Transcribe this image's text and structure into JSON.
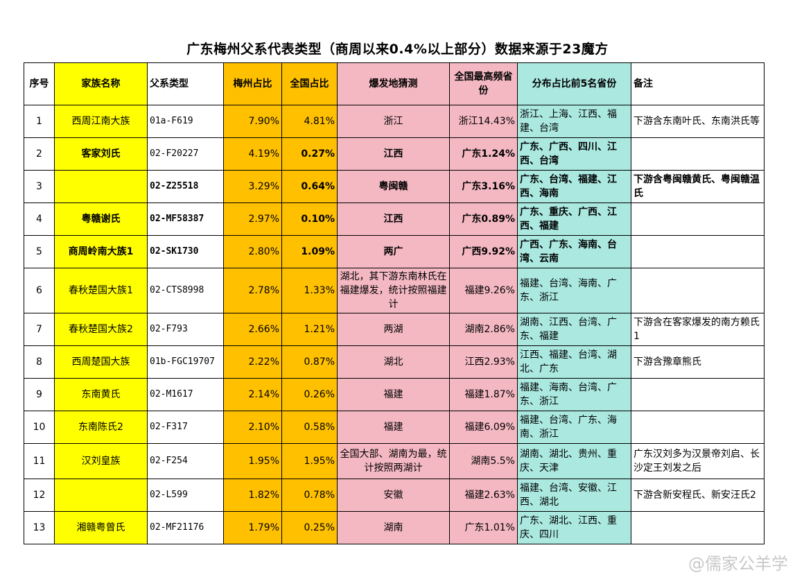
{
  "title": "广东梅州父系代表类型（商周以来0.4%以上部分）数据来源于23魔方",
  "headers": {
    "idx": "序号",
    "name": "家族名称",
    "type": "父系类型",
    "meizhou": "梅州占比",
    "national": "全国占比",
    "origin": "爆发地猜测",
    "top_province": "全国最高频省份",
    "top5": "分布占比前5名省份",
    "note": "备注"
  },
  "rows": [
    {
      "idx": "1",
      "name": "西周江南大族",
      "type": "01a-F619",
      "meizhou": "7.90%",
      "national": "4.81%",
      "origin": "浙江",
      "top_province": "浙江14.43%",
      "top5": "浙江、上海、江西、福建、台湾",
      "note": "下游含东南叶氏、东南洪氏等"
    },
    {
      "idx": "2",
      "name": "客家刘氏",
      "type": "02-F20227",
      "meizhou": "4.19%",
      "national": "0.27%",
      "origin": "江西",
      "top_province": "广东1.24%",
      "top5": "广东、广西、四川、江西、台湾",
      "note": ""
    },
    {
      "idx": "3",
      "name": "",
      "type": "02-Z25518",
      "meizhou": "3.29%",
      "national": "0.64%",
      "origin": "粤闽赣",
      "top_province": "广东3.16%",
      "top5": "广东、台湾、福建、江西、海南",
      "note": "下游含粤闽赣黄氏、粤闽赣温氏"
    },
    {
      "idx": "4",
      "name": "粤赣谢氏",
      "type": "02-MF58387",
      "meizhou": "2.97%",
      "national": "0.10%",
      "origin": "江西",
      "top_province": "广东0.89%",
      "top5": "广东、重庆、广西、江西、福建",
      "note": ""
    },
    {
      "idx": "5",
      "name": "商周岭南大族1",
      "type": "02-SK1730",
      "meizhou": "2.80%",
      "national": "1.09%",
      "origin": "两广",
      "top_province": "广西9.92%",
      "top5": "广西、广东、海南、台湾、云南",
      "note": ""
    },
    {
      "idx": "6",
      "name": "春秋楚国大族1",
      "type": "02-CTS8998",
      "meizhou": "2.78%",
      "national": "1.33%",
      "origin": "湖北，其下游东南林氏在福建爆发，统计按照福建计",
      "top_province": "福建9.26%",
      "top5": "福建、台湾、海南、广东、浙江",
      "note": ""
    },
    {
      "idx": "7",
      "name": "春秋楚国大族2",
      "type": "02-F793",
      "meizhou": "2.66%",
      "national": "1.21%",
      "origin": "两湖",
      "top_province": "湖南2.86%",
      "top5": "湖南、江西、台湾、广东、福建",
      "note": "下游含在客家爆发的南方赖氏1"
    },
    {
      "idx": "8",
      "name": "西周楚国大族",
      "type": "01b-FGC19707",
      "meizhou": "2.22%",
      "national": "0.87%",
      "origin": "湖北",
      "top_province": "江西2.93%",
      "top5": "江西、福建、台湾、湖北、广东",
      "note": "下游含豫章熊氏"
    },
    {
      "idx": "9",
      "name": "东南黄氏",
      "type": "02-M1617",
      "meizhou": "2.14%",
      "national": "0.26%",
      "origin": "福建",
      "top_province": "福建1.87%",
      "top5": "福建、海南、台湾、广东、浙江",
      "note": ""
    },
    {
      "idx": "10",
      "name": "东南陈氏2",
      "type": "02-F317",
      "meizhou": "2.10%",
      "national": "0.58%",
      "origin": "福建",
      "top_province": "福建6.09%",
      "top5": "福建、台湾、广东、海南、浙江",
      "note": ""
    },
    {
      "idx": "11",
      "name": "汉刘皇族",
      "type": "02-F254",
      "meizhou": "1.95%",
      "national": "1.95%",
      "origin": "全国大部、湖南为最，统计按照两湖计",
      "top_province": "湖南5.5%",
      "top5": "湖南、湖北、贵州、重庆、天津",
      "note": "广东汉刘多为汉景帝刘启、长沙定王刘发之后"
    },
    {
      "idx": "12",
      "name": "",
      "type": "02-L599",
      "meizhou": "1.82%",
      "national": "0.78%",
      "origin": "安徽",
      "top_province": "福建2.63%",
      "top5": "福建、台湾、安徽、江西、湖北",
      "note": "下游含新安程氏、新安汪氏2"
    },
    {
      "idx": "13",
      "name": "湘赣粤曾氏",
      "type": "02-MF21176",
      "meizhou": "1.79%",
      "national": "0.25%",
      "origin": "湖南",
      "top_province": "广东1.01%",
      "top5": "广东、湖北、江西、重庆、四川",
      "note": ""
    }
  ],
  "watermark": "@儒家公羊学",
  "colors": {
    "yellow": "#ffff00",
    "orange": "#ffc000",
    "pink": "#f4b8c2",
    "teal": "#aae8e0"
  }
}
